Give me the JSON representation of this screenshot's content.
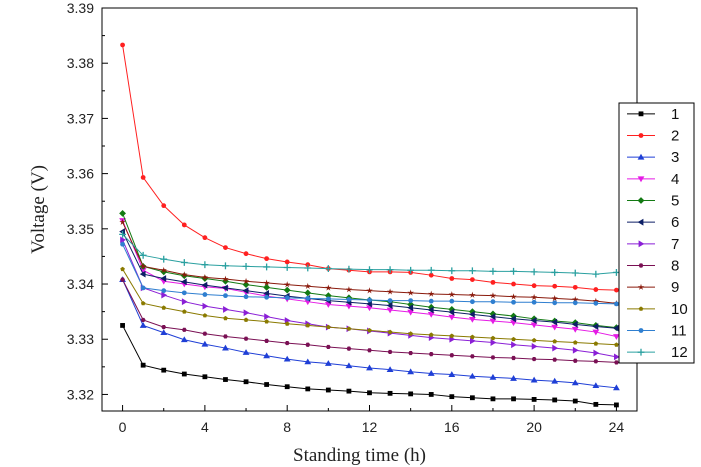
{
  "chart_data": {
    "type": "line",
    "title": "",
    "xlabel": "Standing time (h)",
    "ylabel": "Voltage (V)",
    "xlim": [
      -1,
      25
    ],
    "ylim": [
      3.317,
      3.39
    ],
    "x_ticks": [
      "0",
      "4",
      "8",
      "12",
      "16",
      "20",
      "24"
    ],
    "y_ticks": [
      "3.32",
      "3.33",
      "3.34",
      "3.35",
      "3.36",
      "3.37",
      "3.38",
      "3.39"
    ],
    "legend_position": "right",
    "grid": false,
    "x": [
      0,
      1,
      2,
      3,
      4,
      5,
      6,
      7,
      8,
      9,
      10,
      11,
      12,
      13,
      14,
      15,
      16,
      17,
      18,
      19,
      20,
      21,
      22,
      23,
      24
    ],
    "series": [
      {
        "name": "1",
        "color": "#000000",
        "marker": "square",
        "values": [
          3.3325,
          3.3253,
          3.3244,
          3.3237,
          3.3232,
          3.3227,
          3.3223,
          3.3218,
          3.3214,
          3.321,
          3.3208,
          3.3206,
          3.3203,
          3.3202,
          3.3201,
          3.32,
          3.3196,
          3.3194,
          3.3192,
          3.3192,
          3.3191,
          3.319,
          3.3188,
          3.3182,
          3.3181
        ]
      },
      {
        "name": "2",
        "color": "#ff2020",
        "marker": "circle",
        "values": [
          3.3833,
          3.3593,
          3.3542,
          3.3507,
          3.3484,
          3.3466,
          3.3455,
          3.3446,
          3.344,
          3.3435,
          3.3428,
          3.3425,
          3.3422,
          3.3422,
          3.3421,
          3.3416,
          3.341,
          3.3408,
          3.3403,
          3.34,
          3.3397,
          3.3396,
          3.3394,
          3.339,
          3.3389
        ]
      },
      {
        "name": "3",
        "color": "#1f3fd6",
        "marker": "triangle-up",
        "values": [
          3.3408,
          3.3325,
          3.3312,
          3.3299,
          3.3291,
          3.3284,
          3.3276,
          3.327,
          3.3264,
          3.3259,
          3.3256,
          3.3252,
          3.3248,
          3.3245,
          3.3241,
          3.3238,
          3.3236,
          3.3233,
          3.3231,
          3.3229,
          3.3226,
          3.3224,
          3.3221,
          3.3216,
          3.3212
        ]
      },
      {
        "name": "4",
        "color": "#e51be5",
        "marker": "triangle-down",
        "values": [
          3.3515,
          3.3425,
          3.3405,
          3.34,
          3.3395,
          3.3392,
          3.3385,
          3.3378,
          3.3373,
          3.3368,
          3.3363,
          3.336,
          3.3357,
          3.3353,
          3.3349,
          3.3345,
          3.334,
          3.3336,
          3.3333,
          3.333,
          3.3326,
          3.3322,
          3.3318,
          3.3313,
          3.3305
        ]
      },
      {
        "name": "5",
        "color": "#137a13",
        "marker": "diamond",
        "values": [
          3.3528,
          3.3432,
          3.3422,
          3.3415,
          3.341,
          3.3405,
          3.3399,
          3.3394,
          3.3389,
          3.3384,
          3.3379,
          3.3375,
          3.3371,
          3.3368,
          3.3363,
          3.3358,
          3.3354,
          3.335,
          3.3346,
          3.3342,
          3.3337,
          3.3333,
          3.333,
          3.3325,
          3.3321
        ]
      },
      {
        "name": "6",
        "color": "#0d1f66",
        "marker": "triangle-left",
        "values": [
          3.3495,
          3.3418,
          3.341,
          3.3404,
          3.3398,
          3.3393,
          3.3388,
          3.3383,
          3.3378,
          3.3374,
          3.337,
          3.3367,
          3.3364,
          3.3361,
          3.3357,
          3.3353,
          3.3349,
          3.3345,
          3.3341,
          3.3337,
          3.3334,
          3.3331,
          3.3327,
          3.3323,
          3.332
        ]
      },
      {
        "name": "7",
        "color": "#8a1fd6",
        "marker": "triangle-right",
        "values": [
          3.348,
          3.3393,
          3.338,
          3.3368,
          3.336,
          3.3354,
          3.3348,
          3.3341,
          3.3334,
          3.3328,
          3.3322,
          3.3319,
          3.3315,
          3.3311,
          3.3307,
          3.3303,
          3.33,
          3.3297,
          3.3294,
          3.329,
          3.3287,
          3.3284,
          3.328,
          3.3275,
          3.3268
        ]
      },
      {
        "name": "8",
        "color": "#7a1054",
        "marker": "hexagon",
        "values": [
          3.3408,
          3.3335,
          3.3322,
          3.3317,
          3.331,
          3.3305,
          3.3301,
          3.3297,
          3.3293,
          3.329,
          3.3286,
          3.3283,
          3.328,
          3.3277,
          3.3275,
          3.3273,
          3.3271,
          3.3269,
          3.3267,
          3.3266,
          3.3264,
          3.3263,
          3.3261,
          3.326,
          3.3258
        ]
      },
      {
        "name": "9",
        "color": "#8a1a0c",
        "marker": "star",
        "values": [
          3.3512,
          3.3432,
          3.3425,
          3.3417,
          3.3412,
          3.3409,
          3.3405,
          3.3402,
          3.3399,
          3.3396,
          3.3393,
          3.339,
          3.3388,
          3.3386,
          3.3384,
          3.3382,
          3.3381,
          3.338,
          3.3379,
          3.3377,
          3.3376,
          3.3374,
          3.3372,
          3.3369,
          3.3365
        ]
      },
      {
        "name": "10",
        "color": "#8a7a00",
        "marker": "pentagon",
        "values": [
          3.3427,
          3.3365,
          3.3357,
          3.335,
          3.3343,
          3.3338,
          3.3335,
          3.3332,
          3.3328,
          3.3325,
          3.3322,
          3.3319,
          3.3316,
          3.3313,
          3.331,
          3.3308,
          3.3306,
          3.3304,
          3.3302,
          3.33,
          3.3298,
          3.3296,
          3.3294,
          3.3292,
          3.329
        ]
      },
      {
        "name": "11",
        "color": "#2f7fd0",
        "marker": "circle",
        "values": [
          3.3472,
          3.3393,
          3.3388,
          3.3384,
          3.3381,
          3.3379,
          3.3377,
          3.3376,
          3.3375,
          3.3374,
          3.3373,
          3.3372,
          3.3371,
          3.337,
          3.337,
          3.3369,
          3.3369,
          3.3368,
          3.3368,
          3.3367,
          3.3367,
          3.3366,
          3.3366,
          3.3365,
          3.3364
        ]
      },
      {
        "name": "12",
        "color": "#2aa0a0",
        "marker": "plus",
        "values": [
          3.349,
          3.3452,
          3.3445,
          3.3439,
          3.3435,
          3.3433,
          3.3432,
          3.3431,
          3.343,
          3.3429,
          3.3428,
          3.3427,
          3.3426,
          3.3426,
          3.3425,
          3.3425,
          3.3424,
          3.3424,
          3.3423,
          3.3423,
          3.3422,
          3.3421,
          3.342,
          3.3418,
          3.3421
        ]
      }
    ]
  }
}
